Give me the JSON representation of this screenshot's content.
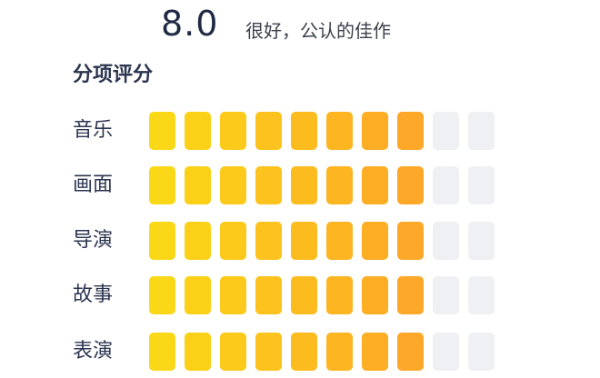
{
  "score": {
    "value": "8.0",
    "verdict": "很好，公认的佳作"
  },
  "section": {
    "title": "分项评分"
  },
  "ratings": [
    {
      "label": "音乐",
      "filled": 8,
      "total": 10
    },
    {
      "label": "画面",
      "filled": 8,
      "total": 10
    },
    {
      "label": "导演",
      "filled": 8,
      "total": 10
    },
    {
      "label": "故事",
      "filled": 8,
      "total": 10
    },
    {
      "label": "表演",
      "filled": 8,
      "total": 10
    }
  ],
  "colors": {
    "segment_gradient": [
      "#fbd817",
      "#fbd118",
      "#fcca1b",
      "#fcc21d",
      "#fcbc1f",
      "#fdb522",
      "#fdae25",
      "#fda828"
    ],
    "segment_empty": "#eef0f4",
    "text_dark": "#1f2a44"
  }
}
